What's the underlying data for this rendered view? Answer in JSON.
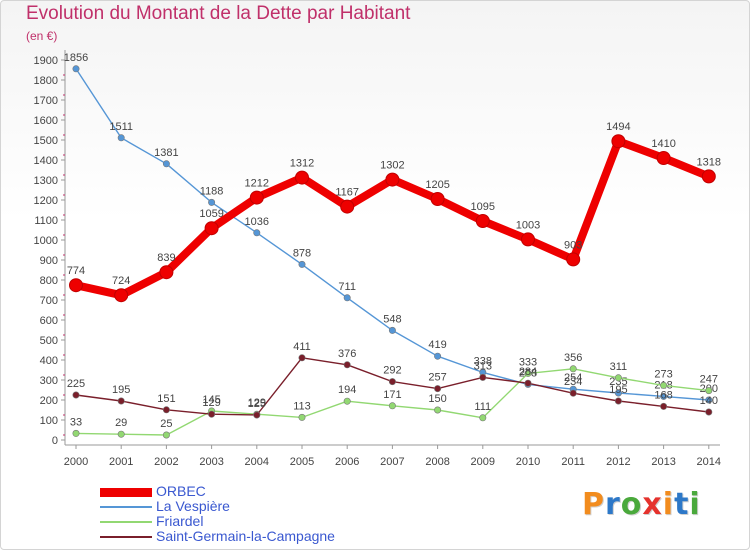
{
  "chart_data": {
    "type": "line",
    "title": "Evolution du Montant de la Dette par Habitant",
    "subtitle": "(en €)",
    "x": [
      "2000",
      "2001",
      "2002",
      "2003",
      "2004",
      "2005",
      "2006",
      "2007",
      "2008",
      "2009",
      "2010",
      "2011",
      "2012",
      "2013",
      "2014"
    ],
    "yticks": [
      0,
      100,
      200,
      300,
      400,
      500,
      600,
      700,
      800,
      900,
      1000,
      1100,
      1200,
      1300,
      1400,
      1500,
      1600,
      1700,
      1800,
      1900
    ],
    "ylim": [
      0,
      1900
    ],
    "grid": false,
    "legend_position": "bottom-left",
    "series": [
      {
        "name": "ORBEC",
        "color": "#ee0000",
        "values": [
          774,
          724,
          839,
          1059,
          1212,
          1312,
          1167,
          1302,
          1205,
          1095,
          1003,
          903,
          1494,
          1410,
          1318
        ]
      },
      {
        "name": "La Vespière",
        "color": "#5596d6",
        "values": [
          1856,
          1511,
          1381,
          1188,
          1036,
          878,
          711,
          548,
          419,
          338,
          278,
          254,
          235,
          218,
          200
        ]
      },
      {
        "name": "Friardel",
        "color": "#92d872",
        "values": [
          33,
          29,
          25,
          145,
          129,
          113,
          194,
          171,
          150,
          111,
          333,
          356,
          311,
          273,
          247
        ]
      },
      {
        "name": "Saint-Germain-la-Campagne",
        "color": "#7a1f2b",
        "values": [
          225,
          195,
          151,
          129,
          125,
          411,
          376,
          292,
          257,
          313,
          284,
          234,
          195,
          168,
          140
        ]
      }
    ]
  },
  "logo": {
    "letters": [
      "P",
      "r",
      "o",
      "x",
      "i",
      "t",
      "i"
    ],
    "colors": [
      "#f28c1e",
      "#2d78c8",
      "#4aa93c",
      "#e5322d",
      "#f28c1e",
      "#2d78c8",
      "#4aa93c"
    ]
  }
}
